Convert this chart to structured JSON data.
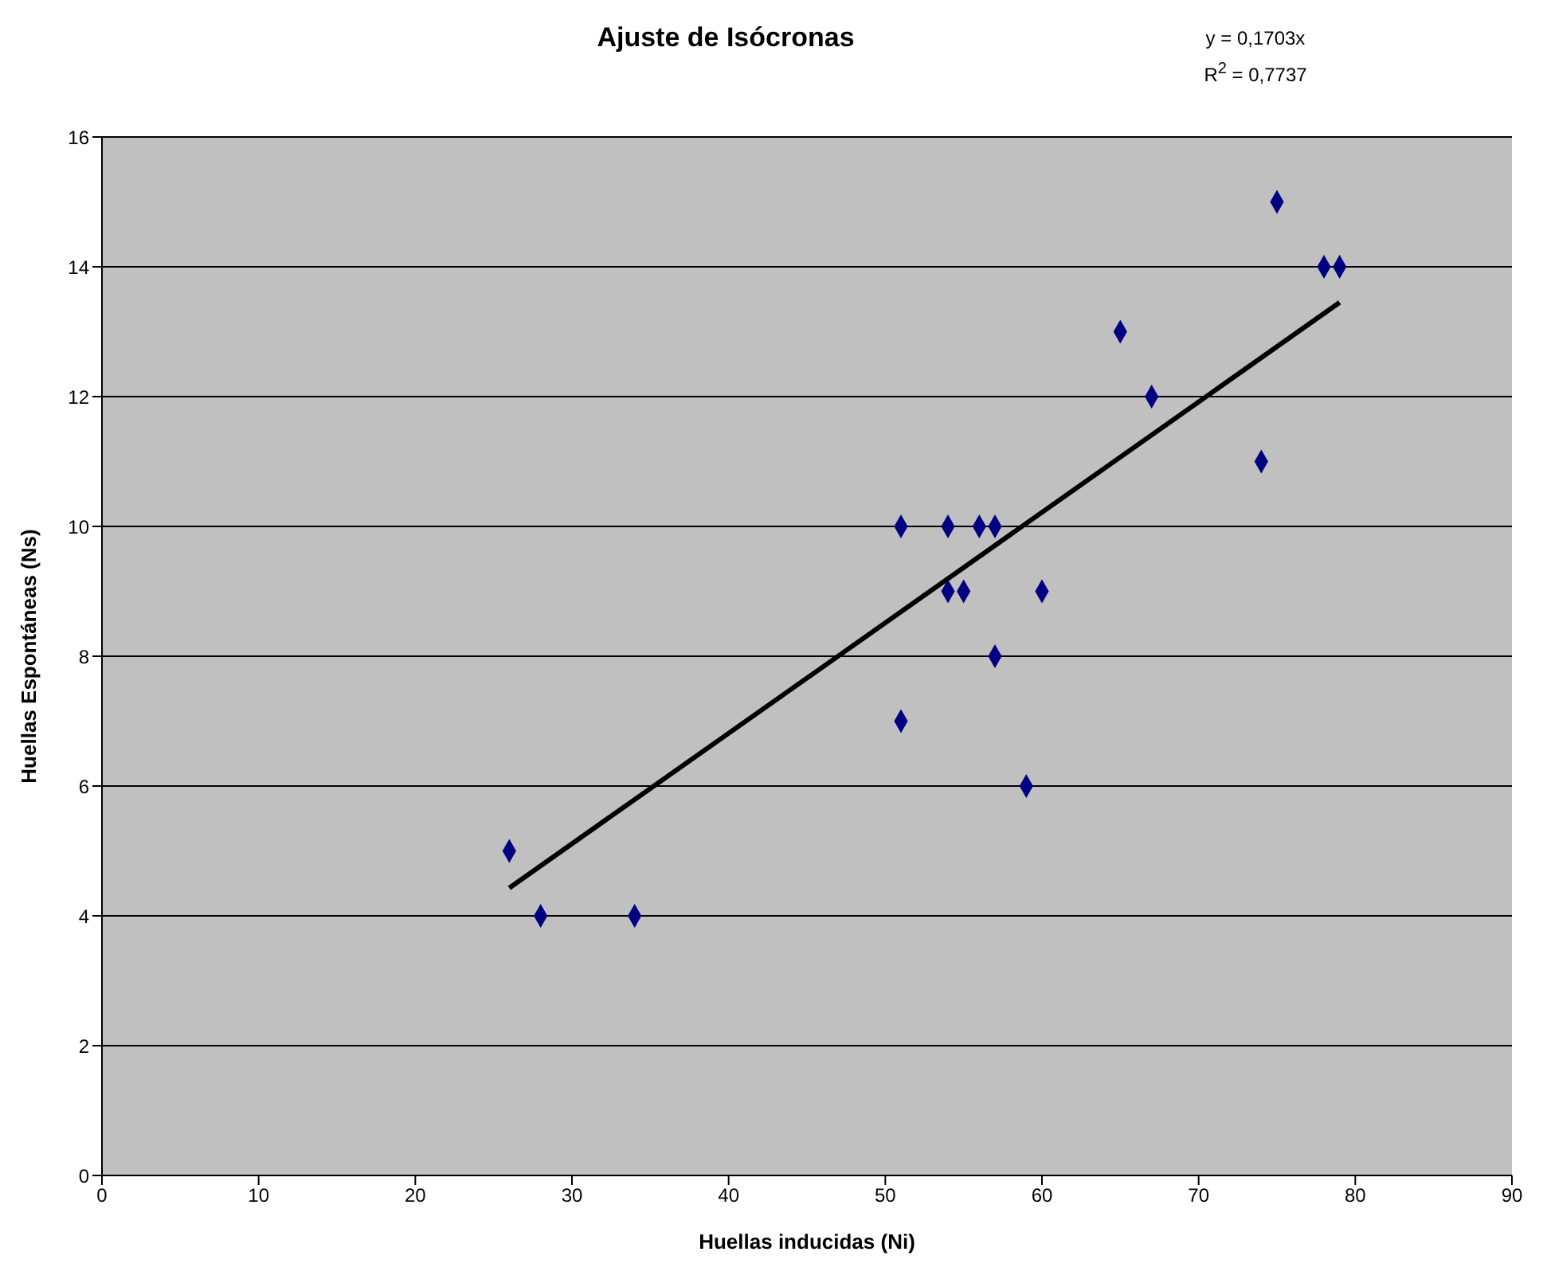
{
  "chart_data": {
    "type": "scatter",
    "title": "Ajuste de Isócronas",
    "xlabel": "Huellas inducidas (Ni)",
    "ylabel": "Huellas Espontáneas (Ns)",
    "annotations": [
      "y = 0,1703x",
      "R$^{2}$ = 0,7737"
    ],
    "x": [
      26,
      28,
      34,
      51,
      51,
      54,
      54,
      55,
      56,
      57,
      57,
      59,
      60,
      65,
      67,
      74,
      75,
      78,
      79
    ],
    "series": [
      {
        "color": "#000080",
        "values": [
          5,
          4,
          4,
          10,
          7,
          10,
          9,
          9,
          10,
          10,
          8,
          6,
          9,
          13,
          12,
          11,
          15,
          14,
          14
        ]
      },
      {
        "type": "line",
        "marker": "none",
        "color": "#000000",
        "x": [
          26,
          79
        ],
        "values": [
          4.43,
          13.45
        ]
      }
    ],
    "xlim": [
      0,
      90
    ],
    "xticks": [
      0,
      10,
      20,
      30,
      40,
      50,
      60,
      70,
      80,
      90
    ],
    "ylim": [
      0,
      16
    ],
    "yticks": [
      0,
      2,
      4,
      6,
      8,
      10,
      12,
      14,
      16
    ],
    "grid": "y",
    "marker": "diamond"
  }
}
